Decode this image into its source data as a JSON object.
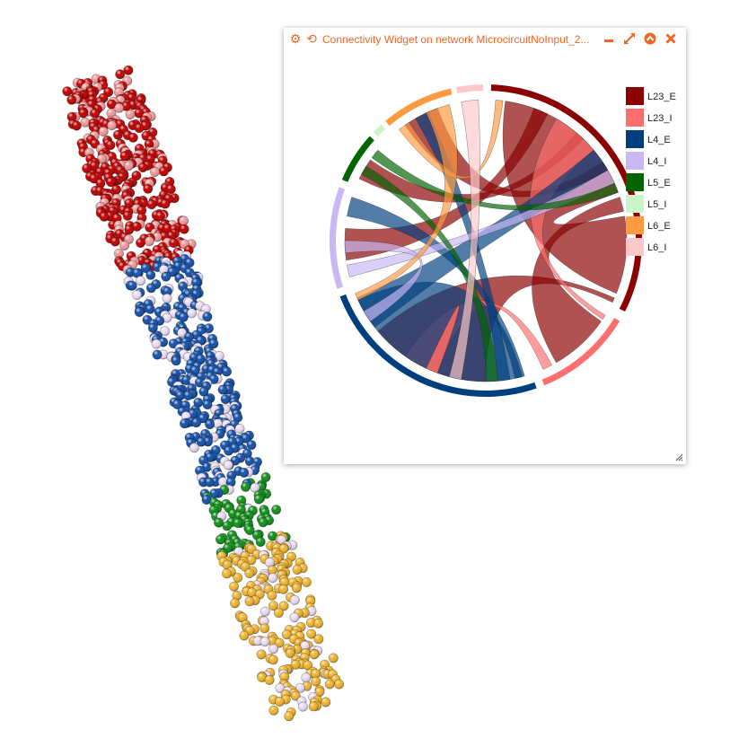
{
  "widget": {
    "title": "Connectivity Widget on network MicrocircuitNoInput_2...",
    "icons": {
      "settings": "gear-icon",
      "history": "history-icon",
      "minimize": "minimize-icon",
      "maximize": "maximize-icon",
      "collapse": "collapse-icon",
      "close": "close-icon"
    }
  },
  "legend": [
    {
      "label": "L23_E",
      "color": "#8b0000"
    },
    {
      "label": "L23_I",
      "color": "#ff6f6f"
    },
    {
      "label": "L4_E",
      "color": "#003f7f"
    },
    {
      "label": "L4_I",
      "color": "#c9b8f4"
    },
    {
      "label": "L5_E",
      "color": "#006400"
    },
    {
      "label": "L5_I",
      "color": "#c9f5c9"
    },
    {
      "label": "L6_E",
      "color": "#ff9a40"
    },
    {
      "label": "L6_I",
      "color": "#ffc8c8"
    }
  ],
  "populations": {
    "L23_E": "#c00000",
    "L23_I": "#f09a9a",
    "L4_E": "#1450a8",
    "L4_I": "#eadcf4",
    "L5_E": "#10901a",
    "L6_E": "#f0b430"
  }
}
